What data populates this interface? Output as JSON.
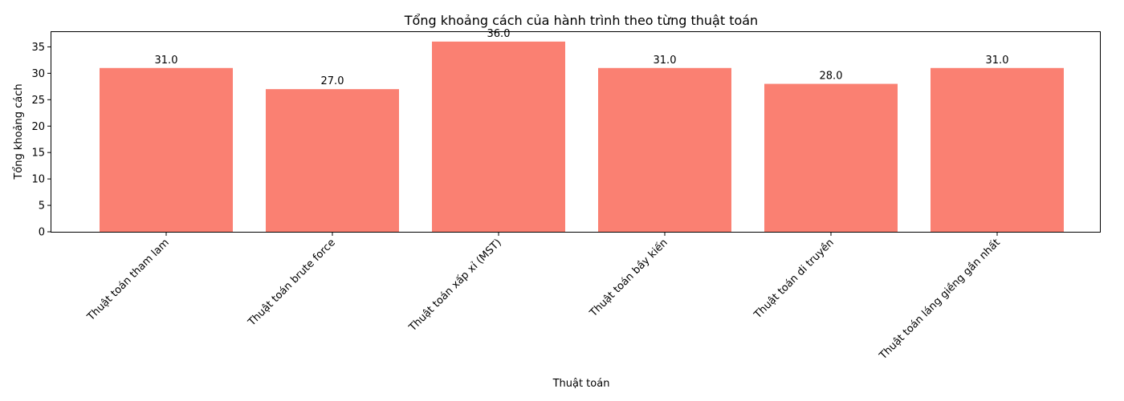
{
  "chart_data": {
    "type": "bar",
    "title": "Tổng khoảng cách của hành trình theo từng thuật toán",
    "xlabel": "Thuật toán",
    "ylabel": "Tổng khoảng cách",
    "categories": [
      "Thuật toán tham lam",
      "Thuật toán brute force",
      "Thuật toán xấp xỉ (MST)",
      "Thuật toán bầy kiến",
      "Thuật toán di truyền",
      "Thuật toán láng giềng gần nhất"
    ],
    "values": [
      31.0,
      27.0,
      36.0,
      31.0,
      28.0,
      31.0
    ],
    "data_labels": [
      "31.0",
      "27.0",
      "36.0",
      "31.0",
      "28.0",
      "31.0"
    ],
    "yticks": [
      0,
      5,
      10,
      15,
      20,
      25,
      30,
      35
    ],
    "ylim": [
      0,
      37.8
    ],
    "bar_color": "#fa8072",
    "grid": false,
    "legend": "none"
  }
}
